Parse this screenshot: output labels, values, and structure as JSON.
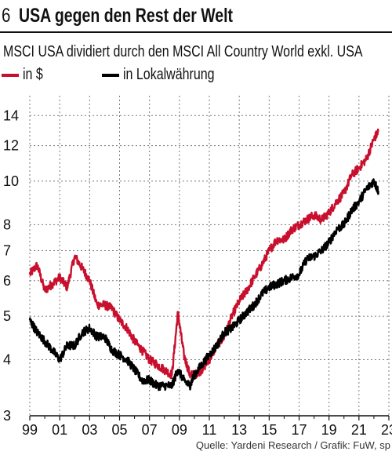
{
  "header": {
    "number": "6",
    "title": "USA gegen den Rest der Welt",
    "subtitle": "MSCI USA dividiert durch den MSCI All Country World exkl. USA"
  },
  "source": "Quelle: Yardeni Research / Grafik: FuW, sp",
  "chart_data": {
    "type": "line",
    "title": "USA gegen den Rest der Welt",
    "subtitle": "MSCI USA dividiert durch den MSCI All Country World exkl. USA",
    "xlabel": "",
    "ylabel": "",
    "yscale": "log",
    "ylim": [
      3,
      15.5
    ],
    "xlim": [
      1999.0,
      2023.0
    ],
    "yticks": [
      3,
      4,
      5,
      6,
      7,
      8,
      10,
      12,
      14
    ],
    "xticks": [
      "99",
      "01",
      "03",
      "05",
      "07",
      "09",
      "11",
      "13",
      "15",
      "17",
      "19",
      "21",
      "23"
    ],
    "grid": true,
    "legend_position": "top-left",
    "series": [
      {
        "name": "in $",
        "color": "#c8102e",
        "x": [
          1999.0,
          1999.5,
          2000.0,
          2000.5,
          2001.0,
          2001.5,
          2002.0,
          2002.5,
          2003.0,
          2003.5,
          2004.0,
          2004.5,
          2005.0,
          2005.5,
          2006.0,
          2006.5,
          2007.0,
          2007.5,
          2008.0,
          2008.5,
          2008.9,
          2009.3,
          2009.7,
          2010.0,
          2010.5,
          2011.0,
          2011.5,
          2012.0,
          2012.5,
          2013.0,
          2013.5,
          2014.0,
          2014.5,
          2015.0,
          2015.5,
          2016.0,
          2016.5,
          2017.0,
          2017.5,
          2018.0,
          2018.5,
          2019.0,
          2019.5,
          2020.0,
          2020.5,
          2021.0,
          2021.5,
          2022.0,
          2022.3
        ],
        "values": [
          6.2,
          6.5,
          5.7,
          5.9,
          6.1,
          5.8,
          6.8,
          6.4,
          6.0,
          5.3,
          5.3,
          5.2,
          4.9,
          4.7,
          4.4,
          4.2,
          4.0,
          3.9,
          3.8,
          3.7,
          5.1,
          4.1,
          3.7,
          3.7,
          3.8,
          4.0,
          4.3,
          4.5,
          5.0,
          5.4,
          5.7,
          6.1,
          6.5,
          7.0,
          7.4,
          7.4,
          7.8,
          8.0,
          8.2,
          8.4,
          8.2,
          8.5,
          9.0,
          9.4,
          10.3,
          10.7,
          11.2,
          12.4,
          12.9
        ]
      },
      {
        "name": "in Lokalwährung",
        "color": "#000000",
        "x": [
          1999.0,
          1999.5,
          2000.0,
          2000.5,
          2001.0,
          2001.5,
          2002.0,
          2002.5,
          2003.0,
          2003.5,
          2004.0,
          2004.5,
          2005.0,
          2005.5,
          2006.0,
          2006.5,
          2007.0,
          2007.5,
          2008.0,
          2008.5,
          2008.9,
          2009.3,
          2009.7,
          2010.0,
          2010.5,
          2011.0,
          2011.5,
          2012.0,
          2012.5,
          2013.0,
          2013.5,
          2014.0,
          2014.5,
          2015.0,
          2015.5,
          2016.0,
          2016.5,
          2017.0,
          2017.5,
          2018.0,
          2018.5,
          2019.0,
          2019.5,
          2020.0,
          2020.5,
          2021.0,
          2021.5,
          2022.0,
          2022.3
        ],
        "values": [
          4.9,
          4.6,
          4.4,
          4.2,
          4.0,
          4.3,
          4.3,
          4.6,
          4.7,
          4.5,
          4.5,
          4.2,
          4.1,
          4.0,
          3.8,
          3.6,
          3.6,
          3.5,
          3.5,
          3.5,
          3.8,
          3.6,
          3.5,
          3.7,
          3.9,
          4.1,
          4.3,
          4.6,
          4.7,
          4.9,
          5.1,
          5.3,
          5.6,
          5.8,
          5.9,
          6.0,
          6.1,
          6.2,
          6.7,
          6.8,
          7.0,
          7.3,
          7.8,
          8.0,
          8.6,
          9.0,
          9.6,
          10.0,
          9.5
        ]
      }
    ]
  }
}
